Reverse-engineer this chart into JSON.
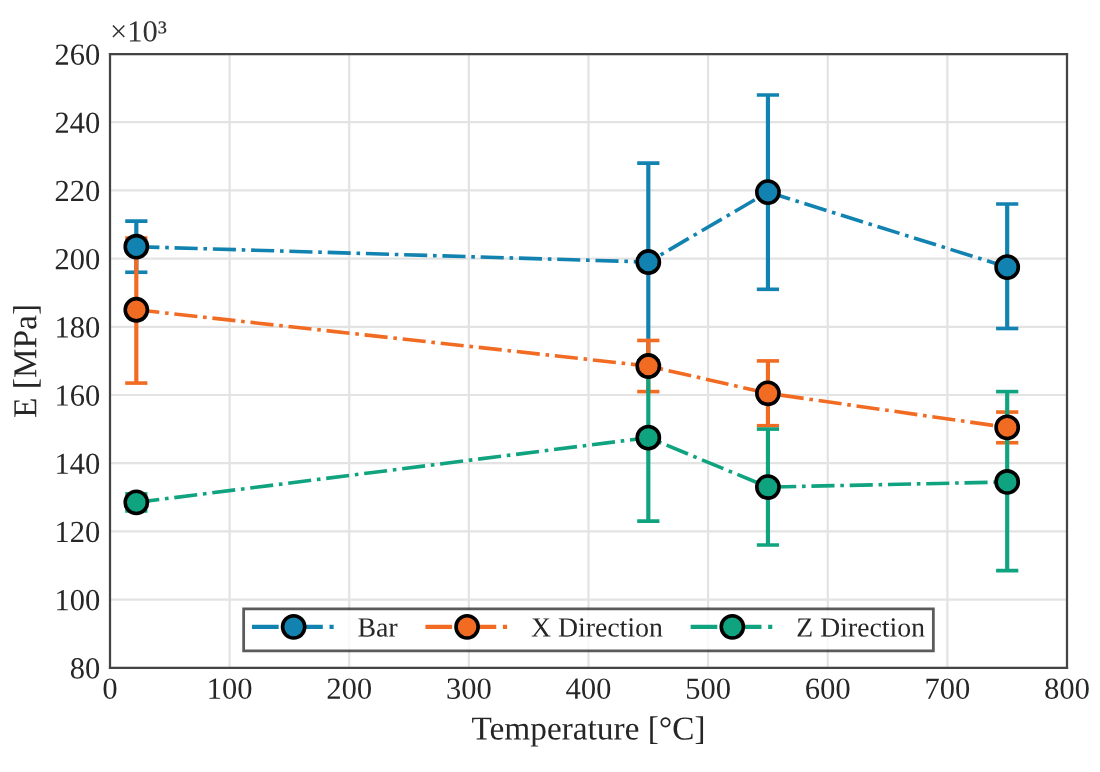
{
  "chart_data": {
    "type": "line",
    "xlabel": "Temperature [°C]",
    "ylabel": "E [MPa]",
    "annotations": [
      "×10³"
    ],
    "x": [
      22,
      450,
      550,
      750
    ],
    "series": [
      {
        "name": "Bar",
        "color": "#1283b0",
        "values": [
          203.5,
          199,
          219.5,
          197.5
        ],
        "errors": [
          [
            196,
            211
          ],
          [
            170,
            228
          ],
          [
            191,
            248
          ],
          [
            179.5,
            216
          ]
        ]
      },
      {
        "name": "X Direction",
        "color": "#f26b22",
        "values": [
          185,
          168.5,
          160.5,
          150.5
        ],
        "errors": [
          [
            163.5,
            206
          ],
          [
            161,
            176
          ],
          [
            151,
            170
          ],
          [
            146,
            155
          ]
        ]
      },
      {
        "name": "Z Direction",
        "color": "#10a37f",
        "values": [
          128.5,
          147.5,
          133,
          134.5
        ],
        "errors": [
          [
            126,
            131
          ],
          [
            123,
            170
          ],
          [
            116,
            150
          ],
          [
            108.5,
            161
          ]
        ]
      }
    ],
    "xlim": [
      0,
      800
    ],
    "xticks": [
      0,
      100,
      200,
      300,
      400,
      500,
      600,
      700,
      800
    ],
    "ylim": [
      80,
      260
    ],
    "yticks": [
      80,
      100,
      120,
      140,
      160,
      180,
      200,
      220,
      240,
      260
    ],
    "grid": true,
    "legend": "bottom",
    "marker": "circle",
    "line_style": "dashdot"
  }
}
